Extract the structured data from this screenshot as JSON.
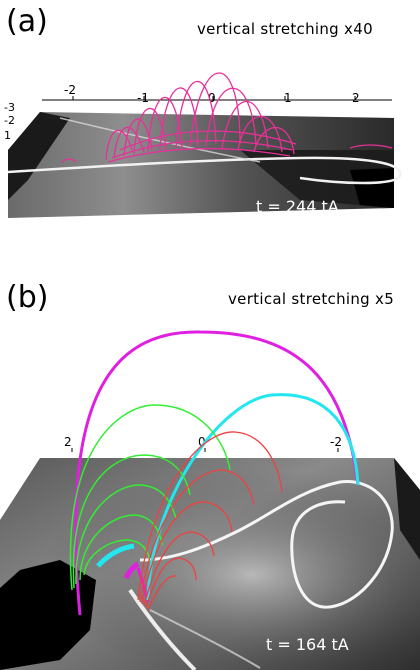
{
  "panel_a": {
    "label": "(a)",
    "stretch": "vertical stretching x40",
    "time": "t = 244 tA",
    "top_ticks": [
      "-2",
      "-1",
      "0",
      "1",
      "2"
    ],
    "left_ticks": [
      "-3",
      "-2",
      "1"
    ],
    "fieldline_color": "#e8309a"
  },
  "panel_b": {
    "label": "(b)",
    "stretch": "vertical stretching x5",
    "time": "t = 164 tA",
    "ticks": [
      "2",
      "0",
      "-2"
    ],
    "colors": {
      "magenta": "#e020e0",
      "cyan": "#22e6f0",
      "green": "#33ee33",
      "red": "#f04040"
    }
  }
}
